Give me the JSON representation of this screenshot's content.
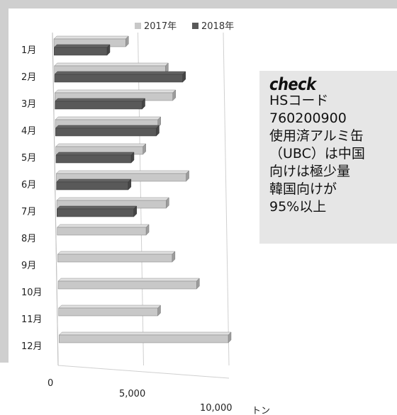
{
  "chart_data": {
    "type": "bar",
    "orientation": "horizontal",
    "style": "3d",
    "categories": [
      "1月",
      "2月",
      "3月",
      "4月",
      "5月",
      "6月",
      "7月",
      "8月",
      "9月",
      "10月",
      "11月",
      "12月"
    ],
    "series": [
      {
        "name": "2017年",
        "color": "#c8c8c8",
        "values": [
          4200,
          6500,
          6900,
          6000,
          5100,
          7600,
          6400,
          5200,
          6700,
          8100,
          5800,
          9900
        ]
      },
      {
        "name": "2018年",
        "color": "#595959",
        "values": [
          3100,
          7500,
          5100,
          5900,
          4400,
          4200,
          4500,
          null,
          null,
          null,
          null,
          null
        ]
      }
    ],
    "x_ticks": [
      "0",
      "5,000",
      "10,000"
    ],
    "xlim": [
      0,
      10000
    ],
    "x_unit": "トン",
    "legend_position": "top",
    "grid": true
  },
  "note": {
    "title": "check",
    "lines": [
      "HSコード",
      "760200900",
      "使用済アルミ缶",
      "（UBC）は中国",
      "向けは極少量",
      "韓国向けが",
      "95%以上"
    ]
  }
}
